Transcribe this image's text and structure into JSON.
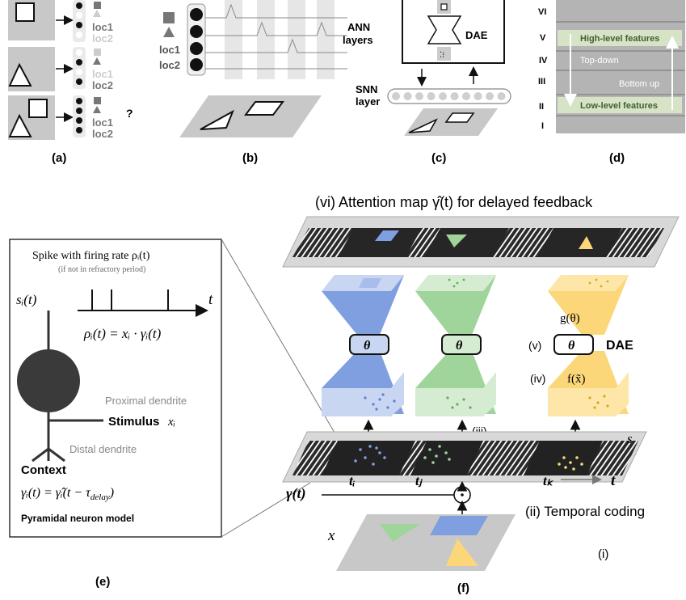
{
  "panel_labels": {
    "a": "(a)",
    "b": "(b)",
    "c": "(c)",
    "d": "(d)",
    "e": "(e)",
    "f": "(f)"
  },
  "panel_a": {
    "loc1": "loc1",
    "loc2": "loc2",
    "question": "?"
  },
  "panel_b": {
    "loc1": "loc1",
    "loc2": "loc2"
  },
  "panel_c": {
    "ann_line1": "ANN",
    "ann_line2": "layers",
    "dae": "DAE",
    "snn_line1": "SNN",
    "snn_line2": "layer"
  },
  "panel_d": {
    "layers": [
      "VI",
      "V",
      "IV",
      "III",
      "II",
      "I"
    ],
    "high_level": "High-level features",
    "top_down": "Top-down",
    "bottom_up": "Bottom up",
    "low_level": "Low-level features"
  },
  "panel_e": {
    "spike_title": "Spike with firing rate ρᵢ(t)",
    "refractory_note": "(if not in refractory period)",
    "s_label": "sᵢ(t)",
    "t_label": "t",
    "rate_eq": "ρᵢ(t) =  xᵢ · γᵢ(t)",
    "proximal": "Proximal dendrite",
    "stimulus": "Stimulus",
    "stimulus_var": "xᵢ",
    "distal": "Distal dendrite",
    "context": "Context",
    "context_eq": "γᵢ(t) = γ̂ᵢ(t − τ",
    "context_eq_sub": "delay",
    "context_eq_end": ")",
    "model_name": "Pyramidal neuron model"
  },
  "panel_f": {
    "attention_title": "(vi)  Attention map γ̂(t) for delayed feedback",
    "theta": "θ",
    "v_label": "(v)",
    "dae": "DAE",
    "g_theta": "g(θ)",
    "iv_label": "(iv)",
    "f_x": "f(x̃)",
    "iii_label": "(iii)",
    "s_label": "s",
    "ti": "tᵢ",
    "tj": "tⱼ",
    "tk": "tₖ",
    "t_arrow": "t",
    "gamma_t": "γ(t)",
    "ii_label": "(ii) Temporal coding",
    "x_label": "x",
    "i_label": "(i)"
  },
  "colors": {
    "blue": "#7f9fe0",
    "green": "#9fd49a",
    "yellow": "#fbd77a",
    "dark_panel": "#222222",
    "gray_plane": "#c8c8c8",
    "cortex_band": "#b4b4b4",
    "feature_green": "#3f5f2f"
  }
}
